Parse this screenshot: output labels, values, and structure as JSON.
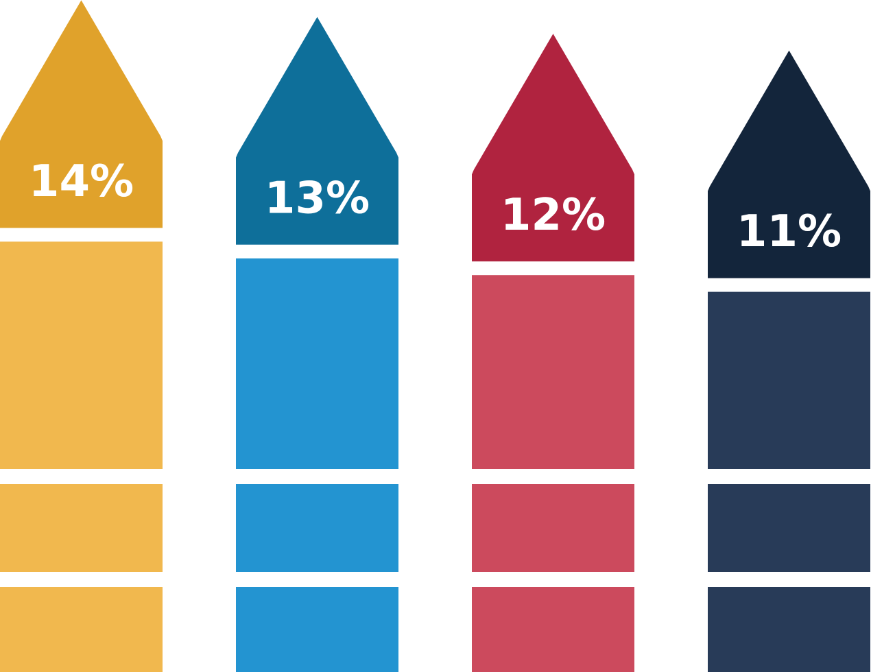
{
  "chart_data": {
    "type": "arrow-bar",
    "categories": [
      null,
      null,
      null,
      null
    ],
    "values": [
      14,
      13,
      12,
      11
    ],
    "value_labels": [
      "14%",
      "13%",
      "12%",
      "11%"
    ],
    "colors": [
      "#e0a22b",
      "#0e6f9a",
      "#b0233f",
      "#13253b"
    ],
    "light_colors": [
      "#f1b84e",
      "#2394d1",
      "#cc4a5d",
      "#283b58"
    ]
  }
}
